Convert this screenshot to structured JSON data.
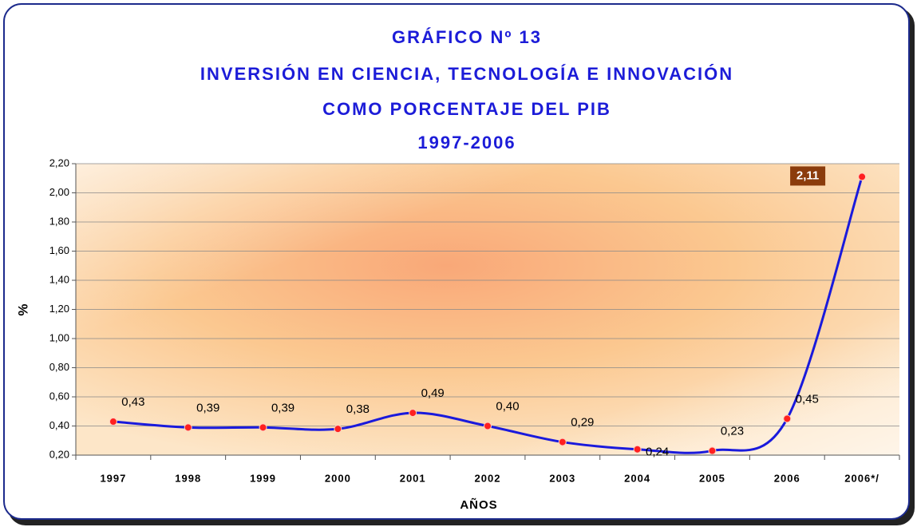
{
  "chart_data": {
    "type": "line",
    "title": [
      "GRÁFICO Nº 13",
      "INVERSIÓN EN CIENCIA, TECNOLOGÍA E INNOVACIÓN",
      "COMO PORCENTAJE DEL PIB",
      "1997-2006"
    ],
    "xlabel": "AÑOS",
    "ylabel": "%",
    "categories": [
      "1997",
      "1998",
      "1999",
      "2000",
      "2001",
      "2002",
      "2003",
      "2004",
      "2005",
      "2006",
      "2006*/"
    ],
    "values": [
      0.43,
      0.39,
      0.39,
      0.38,
      0.49,
      0.4,
      0.29,
      0.24,
      0.23,
      0.45,
      2.11
    ],
    "value_labels": [
      "0,43",
      "0,39",
      "0,39",
      "0,38",
      "0,49",
      "0,40",
      "0,29",
      "0,24",
      "0,23",
      "0,45",
      "2,11"
    ],
    "color": "#1a1adc",
    "marker_color": "#ff2020",
    "ylim": [
      0.2,
      2.2
    ],
    "yticks": [
      {
        "value": 0.2,
        "label": "0,20"
      },
      {
        "value": 0.4,
        "label": "0,40"
      },
      {
        "value": 0.6,
        "label": "0,60"
      },
      {
        "value": 0.8,
        "label": "0,80"
      },
      {
        "value": 1.0,
        "label": "1,00"
      },
      {
        "value": 1.2,
        "label": "1,20"
      },
      {
        "value": 1.4,
        "label": "1,40"
      },
      {
        "value": 1.6,
        "label": "1,60"
      },
      {
        "value": 1.8,
        "label": "1,80"
      },
      {
        "value": 2.0,
        "label": "2,00"
      },
      {
        "value": 2.2,
        "label": "2,20"
      }
    ],
    "grid": true
  }
}
